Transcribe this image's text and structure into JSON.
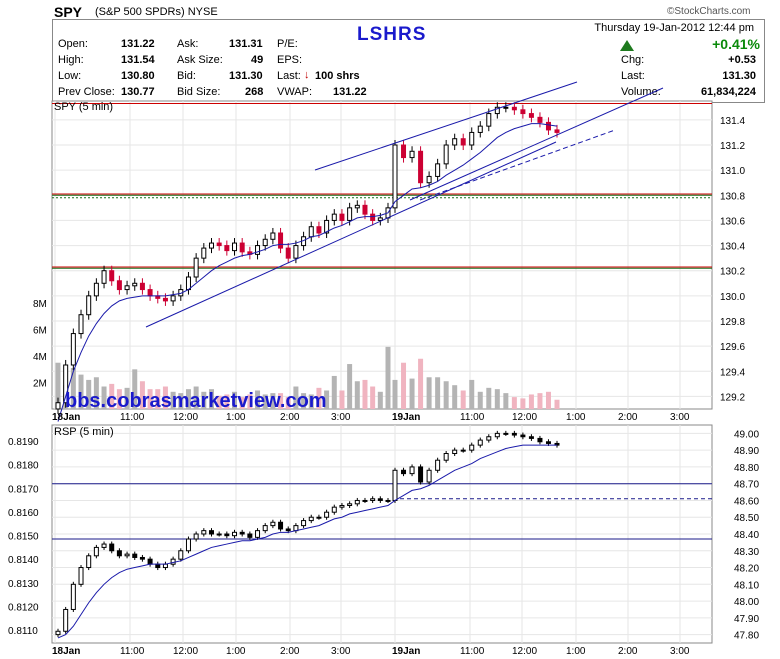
{
  "header": {
    "symbol": "SPY",
    "name": "(S&P 500 SPDRs)",
    "exchange": "NYSE",
    "watermark": "©StockCharts.com",
    "overlay_title": "LSHRS",
    "datetime": "Thursday   19-Jan-2012   12:44 pm",
    "change_pct": "+0.41%",
    "url_overlay": "bbs.cobrasmarketview.com"
  },
  "quote": {
    "open_label": "Open:",
    "open": "131.22",
    "high_label": "High:",
    "high": "131.54",
    "low_label": "Low:",
    "low": "130.80",
    "prev_label": "Prev Close:",
    "prev": "130.77",
    "ask_label": "Ask:",
    "ask": "131.31",
    "asksize_label": "Ask Size:",
    "asksize": "49",
    "bid_label": "Bid:",
    "bid": "131.30",
    "bidsize_label": "Bid Size:",
    "bidsize": "268",
    "pe_label": "P/E:",
    "eps_label": "EPS:",
    "last_trade_label": "Last:",
    "last_trade": "100 shrs",
    "vwap_label": "VWAP:",
    "vwap": "131.22",
    "chg_label": "Chg:",
    "chg": "+0.53",
    "last_label": "Last:",
    "last": "131.30",
    "volume_label": "Volume:",
    "volume": "61,834,224"
  },
  "colors": {
    "up_candle": "#000000",
    "down_candle": "#cc0033",
    "ma_line": "#1a1aaa",
    "resistance_red": "#cc0000",
    "support_green": "#1a6e1a",
    "volume_gray": "#b4b4b4",
    "volume_pink": "#f0b4c0",
    "blue_accent": "#1a1acc"
  },
  "chart_data": [
    {
      "type": "candlestick",
      "title": "SPY (5 min)",
      "x_ticks": [
        "18Jan",
        "11:00",
        "12:00",
        "1:00",
        "2:00",
        "3:00",
        "19Jan",
        "11:00",
        "12:00",
        "1:00",
        "2:00",
        "3:00"
      ],
      "y_ticks": [
        "131.4",
        "131.2",
        "131.0",
        "130.8",
        "130.6",
        "130.4",
        "130.2",
        "130.0",
        "129.8",
        "129.6",
        "129.4",
        "129.2"
      ],
      "ylim": [
        129.1,
        131.55
      ],
      "volume_ticks": [
        "8M",
        "6M",
        "4M",
        "2M"
      ],
      "volume_ylim": [
        0,
        9000000
      ],
      "horizontal_lines": [
        {
          "value": 131.53,
          "color": "red"
        },
        {
          "value": 130.81,
          "color": "red"
        },
        {
          "value": 130.8,
          "color": "green"
        },
        {
          "value": 130.78,
          "color": "green-dotted"
        },
        {
          "value": 130.23,
          "color": "red"
        },
        {
          "value": 130.22,
          "color": "green"
        }
      ],
      "close_series": [
        129.15,
        129.45,
        129.7,
        129.85,
        130.0,
        130.1,
        130.2,
        130.12,
        130.05,
        130.08,
        130.1,
        130.05,
        130.0,
        129.98,
        129.96,
        130.0,
        130.05,
        130.15,
        130.3,
        130.38,
        130.42,
        130.4,
        130.36,
        130.42,
        130.35,
        130.33,
        130.4,
        130.45,
        130.5,
        130.38,
        130.3,
        130.4,
        130.47,
        130.55,
        130.5,
        130.6,
        130.65,
        130.6,
        130.7,
        130.72,
        130.65,
        130.6,
        130.62,
        130.7,
        131.2,
        131.1,
        131.15,
        130.9,
        130.95,
        131.05,
        131.2,
        131.25,
        131.2,
        131.3,
        131.35,
        131.45,
        131.5,
        131.5,
        131.48,
        131.45,
        131.42,
        131.38,
        131.32,
        131.3
      ],
      "ma_series": [
        129.0,
        129.2,
        129.4,
        129.55,
        129.68,
        129.78,
        129.86,
        129.92,
        129.96,
        129.98,
        129.99,
        130.0,
        130.0,
        130.0,
        130.0,
        130.01,
        130.02,
        130.05,
        130.1,
        130.15,
        130.2,
        130.24,
        130.27,
        130.3,
        130.32,
        130.33,
        130.35,
        130.37,
        130.4,
        130.41,
        130.41,
        130.42,
        130.44,
        130.47,
        130.48,
        130.51,
        130.54,
        130.56,
        130.59,
        130.62,
        130.63,
        130.63,
        130.64,
        130.66,
        130.75,
        130.8,
        130.85,
        130.86,
        130.88,
        130.91,
        130.96,
        131.0,
        131.04,
        131.09,
        131.14,
        131.2,
        131.26,
        131.3,
        131.33,
        131.35,
        131.37,
        131.37,
        131.36,
        131.35
      ],
      "volume_series": [
        3500000,
        1800000,
        3100000,
        2600000,
        2200000,
        2400000,
        1700000,
        1900000,
        1500000,
        1600000,
        3000000,
        2100000,
        1500000,
        1500000,
        1700000,
        1300000,
        1200000,
        1500000,
        1700000,
        1300000,
        1500000,
        1000000,
        1100000,
        1300000,
        900000,
        1100000,
        1400000,
        1100000,
        1200000,
        1200000,
        900000,
        1700000,
        1200000,
        1100000,
        1600000,
        1400000,
        2500000,
        1400000,
        3400000,
        2100000,
        2200000,
        1700000,
        1300000,
        4700000,
        2200000,
        3500000,
        2300000,
        3800000,
        2400000,
        2400000,
        2100000,
        1800000,
        1400000,
        2200000,
        1300000,
        1600000,
        1500000,
        1200000,
        900000,
        800000,
        1100000,
        1200000,
        1300000,
        700000
      ]
    },
    {
      "type": "candlestick",
      "title": "RSP (5 min)",
      "x_ticks": [
        "18Jan",
        "11:00",
        "12:00",
        "1:00",
        "2:00",
        "3:00",
        "19Jan",
        "11:00",
        "12:00",
        "1:00",
        "2:00",
        "3:00"
      ],
      "y_ticks_left": [
        "0.8190",
        "0.8180",
        "0.8170",
        "0.8160",
        "0.8150",
        "0.8140",
        "0.8130",
        "0.8120",
        "0.8110"
      ],
      "y_ticks_right": [
        "49.00",
        "48.90",
        "48.80",
        "48.70",
        "48.60",
        "48.50",
        "48.40",
        "48.30",
        "48.20",
        "48.10",
        "48.00",
        "47.90",
        "47.80"
      ],
      "ylim_right": [
        47.75,
        49.05
      ],
      "horizontal_lines": [
        {
          "value": 48.7,
          "color": "blue"
        },
        {
          "value": 48.61,
          "color": "blue-dashed"
        },
        {
          "value": 48.37,
          "color": "blue"
        }
      ],
      "close_series": [
        47.82,
        47.95,
        48.1,
        48.2,
        48.27,
        48.32,
        48.34,
        48.3,
        48.27,
        48.28,
        48.26,
        48.25,
        48.22,
        48.2,
        48.22,
        48.25,
        48.3,
        48.37,
        48.4,
        48.42,
        48.4,
        48.4,
        48.39,
        48.41,
        48.4,
        48.38,
        48.42,
        48.45,
        48.47,
        48.43,
        48.42,
        48.45,
        48.48,
        48.5,
        48.5,
        48.53,
        48.56,
        48.57,
        48.58,
        48.6,
        48.6,
        48.61,
        48.6,
        48.6,
        48.78,
        48.76,
        48.8,
        48.71,
        48.78,
        48.84,
        48.88,
        48.9,
        48.9,
        48.93,
        48.96,
        48.98,
        49.0,
        49.0,
        48.99,
        48.98,
        48.97,
        48.95,
        48.94,
        48.93
      ],
      "ma_series": [
        47.78,
        47.8,
        47.85,
        47.92,
        47.99,
        48.05,
        48.1,
        48.14,
        48.17,
        48.19,
        48.2,
        48.21,
        48.22,
        48.22,
        48.22,
        48.23,
        48.24,
        48.26,
        48.28,
        48.3,
        48.32,
        48.33,
        48.34,
        48.35,
        48.36,
        48.36,
        48.37,
        48.38,
        48.4,
        48.41,
        48.41,
        48.42,
        48.43,
        48.44,
        48.45,
        48.47,
        48.49,
        48.5,
        48.52,
        48.53,
        48.54,
        48.55,
        48.56,
        48.57,
        48.6,
        48.63,
        48.66,
        48.67,
        48.69,
        48.72,
        48.75,
        48.78,
        48.8,
        48.82,
        48.85,
        48.87,
        48.89,
        48.91,
        48.92,
        48.93,
        48.93,
        48.93,
        48.93,
        48.93
      ]
    }
  ]
}
